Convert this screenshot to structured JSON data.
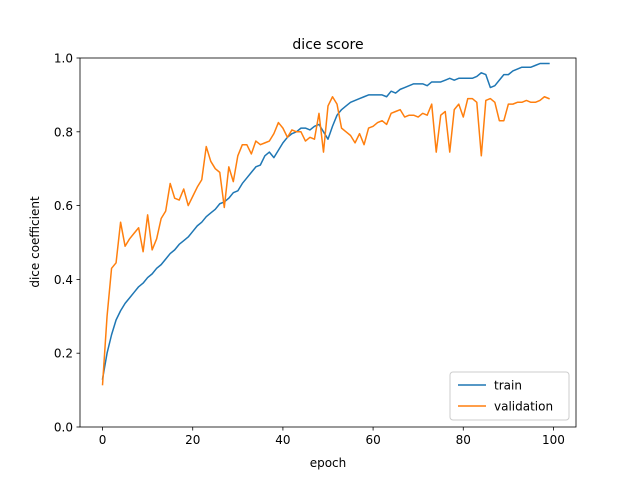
{
  "chart_data": {
    "type": "line",
    "title": "dice score",
    "xlabel": "epoch",
    "ylabel": "dice coefficient",
    "xlim": [
      -5,
      105
    ],
    "ylim": [
      0.0,
      1.0
    ],
    "xticks": [
      0,
      20,
      40,
      60,
      80,
      100
    ],
    "yticks": [
      0.0,
      0.2,
      0.4,
      0.6,
      0.8,
      1.0
    ],
    "xtick_labels": [
      "0",
      "20",
      "40",
      "60",
      "80",
      "100"
    ],
    "ytick_labels": [
      "0.0",
      "0.2",
      "0.4",
      "0.6",
      "0.8",
      "1.0"
    ],
    "grid": false,
    "legend": {
      "position": "lower-right"
    },
    "series": [
      {
        "name": "train",
        "color": "#1f77b4",
        "x": [
          0,
          1,
          2,
          3,
          4,
          5,
          6,
          7,
          8,
          9,
          10,
          11,
          12,
          13,
          14,
          15,
          16,
          17,
          18,
          19,
          20,
          21,
          22,
          23,
          24,
          25,
          26,
          27,
          28,
          29,
          30,
          31,
          32,
          33,
          34,
          35,
          36,
          37,
          38,
          39,
          40,
          41,
          42,
          43,
          44,
          45,
          46,
          47,
          48,
          49,
          50,
          51,
          52,
          53,
          54,
          55,
          56,
          57,
          58,
          59,
          60,
          61,
          62,
          63,
          64,
          65,
          66,
          67,
          68,
          69,
          70,
          71,
          72,
          73,
          74,
          75,
          76,
          77,
          78,
          79,
          80,
          81,
          82,
          83,
          84,
          85,
          86,
          87,
          88,
          89,
          90,
          91,
          92,
          93,
          94,
          95,
          96,
          97,
          98,
          99
        ],
        "y": [
          0.13,
          0.2,
          0.25,
          0.29,
          0.315,
          0.335,
          0.35,
          0.365,
          0.38,
          0.39,
          0.405,
          0.415,
          0.43,
          0.44,
          0.455,
          0.47,
          0.48,
          0.495,
          0.505,
          0.515,
          0.53,
          0.545,
          0.555,
          0.57,
          0.58,
          0.59,
          0.605,
          0.61,
          0.62,
          0.635,
          0.64,
          0.66,
          0.675,
          0.69,
          0.705,
          0.71,
          0.735,
          0.745,
          0.73,
          0.75,
          0.77,
          0.785,
          0.795,
          0.8,
          0.81,
          0.81,
          0.805,
          0.815,
          0.82,
          0.8,
          0.78,
          0.815,
          0.845,
          0.86,
          0.87,
          0.88,
          0.885,
          0.89,
          0.895,
          0.9,
          0.9,
          0.9,
          0.9,
          0.895,
          0.91,
          0.905,
          0.915,
          0.92,
          0.925,
          0.93,
          0.93,
          0.93,
          0.925,
          0.935,
          0.935,
          0.935,
          0.94,
          0.945,
          0.94,
          0.945,
          0.945,
          0.945,
          0.945,
          0.95,
          0.96,
          0.955,
          0.92,
          0.925,
          0.94,
          0.955,
          0.955,
          0.965,
          0.97,
          0.975,
          0.975,
          0.975,
          0.98,
          0.985,
          0.985,
          0.985
        ]
      },
      {
        "name": "validation",
        "color": "#ff7f0e",
        "x": [
          0,
          1,
          2,
          3,
          4,
          5,
          6,
          7,
          8,
          9,
          10,
          11,
          12,
          13,
          14,
          15,
          16,
          17,
          18,
          19,
          20,
          21,
          22,
          23,
          24,
          25,
          26,
          27,
          28,
          29,
          30,
          31,
          32,
          33,
          34,
          35,
          36,
          37,
          38,
          39,
          40,
          41,
          42,
          43,
          44,
          45,
          46,
          47,
          48,
          49,
          50,
          51,
          52,
          53,
          54,
          55,
          56,
          57,
          58,
          59,
          60,
          61,
          62,
          63,
          64,
          65,
          66,
          67,
          68,
          69,
          70,
          71,
          72,
          73,
          74,
          75,
          76,
          77,
          78,
          79,
          80,
          81,
          82,
          83,
          84,
          85,
          86,
          87,
          88,
          89,
          90,
          91,
          92,
          93,
          94,
          95,
          96,
          97,
          98,
          99
        ],
        "y": [
          0.115,
          0.3,
          0.43,
          0.445,
          0.555,
          0.49,
          0.51,
          0.525,
          0.54,
          0.475,
          0.575,
          0.48,
          0.51,
          0.565,
          0.585,
          0.66,
          0.62,
          0.615,
          0.645,
          0.6,
          0.625,
          0.65,
          0.67,
          0.76,
          0.72,
          0.7,
          0.69,
          0.595,
          0.705,
          0.665,
          0.735,
          0.765,
          0.765,
          0.74,
          0.775,
          0.765,
          0.77,
          0.775,
          0.795,
          0.825,
          0.81,
          0.785,
          0.805,
          0.8,
          0.8,
          0.775,
          0.785,
          0.78,
          0.85,
          0.745,
          0.87,
          0.895,
          0.875,
          0.81,
          0.8,
          0.79,
          0.77,
          0.795,
          0.765,
          0.81,
          0.815,
          0.825,
          0.83,
          0.82,
          0.85,
          0.855,
          0.86,
          0.84,
          0.845,
          0.845,
          0.84,
          0.85,
          0.845,
          0.875,
          0.745,
          0.845,
          0.855,
          0.745,
          0.86,
          0.875,
          0.84,
          0.89,
          0.89,
          0.88,
          0.735,
          0.885,
          0.89,
          0.88,
          0.83,
          0.83,
          0.875,
          0.875,
          0.88,
          0.88,
          0.885,
          0.88,
          0.88,
          0.885,
          0.895,
          0.89
        ]
      }
    ]
  }
}
